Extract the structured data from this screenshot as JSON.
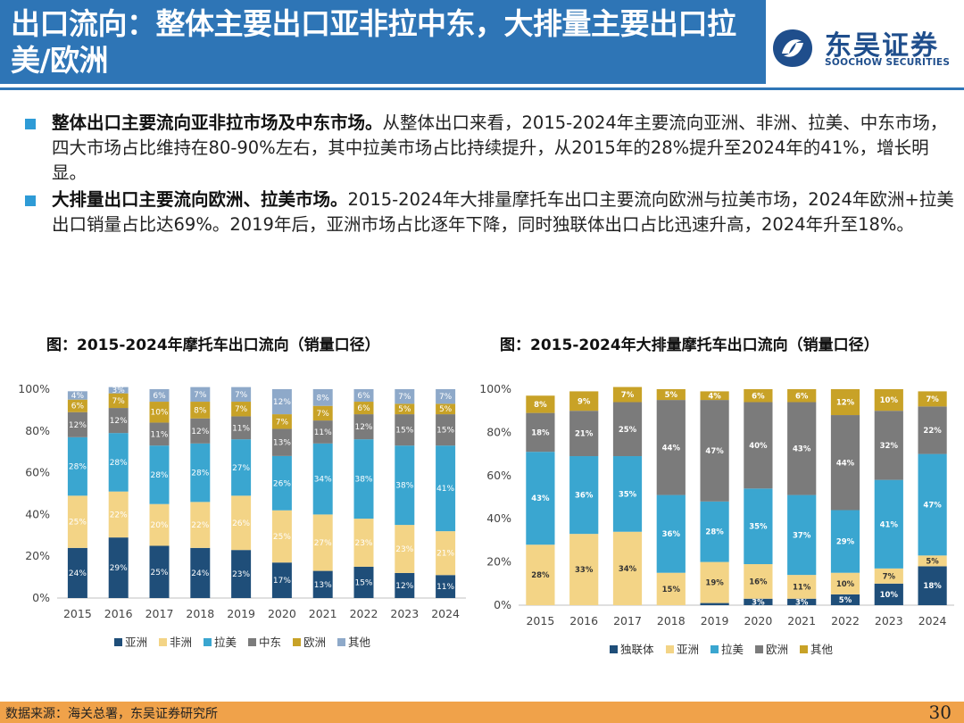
{
  "header": {
    "title": "出口流向：整体主要出口亚非拉中东，大排量主要出口拉美/欧洲",
    "logo_cn": "东吴证券",
    "logo_en": "SOOCHOW SECURITIES"
  },
  "bullets": [
    {
      "bold": "整体出口主要流向亚非拉市场及中东市场。",
      "text": "从整体出口来看，2015-2024年主要流向亚洲、非洲、拉美、中东市场，四大市场占比维持在80-90%左右，其中拉美市场占比持续提升，从2015年的28%提升至2024年的41%，增长明显。"
    },
    {
      "bold": "大排量出口主要流向欧洲、拉美市场。",
      "text": "2015-2024年大排量摩托车出口主要流向欧洲与拉美市场，2024年欧洲+拉美出口销量占比达69%。2019年后，亚洲市场占比逐年下降，同时独联体出口占比迅速升高，2024年升至18%。"
    }
  ],
  "footer": {
    "source": "数据来源：海关总署，东吴证券研究所",
    "page": "30"
  },
  "chart_data": [
    {
      "type": "bar",
      "stacked": true,
      "title": "图：2015-2024年摩托车出口流向（销量口径）",
      "categories": [
        "2015",
        "2016",
        "2017",
        "2018",
        "2019",
        "2020",
        "2021",
        "2022",
        "2023",
        "2024"
      ],
      "ylim": [
        0,
        100
      ],
      "yticks": [
        "0%",
        "20%",
        "40%",
        "60%",
        "80%",
        "100%"
      ],
      "legend_position": "bottom",
      "grid": false,
      "series": [
        {
          "name": "亚洲",
          "color": "#1f4e79",
          "values": [
            24,
            29,
            25,
            24,
            23,
            17,
            13,
            15,
            12,
            11
          ],
          "labels": [
            "24%",
            "29%",
            "25%",
            "24%",
            "23%",
            "17%",
            "13%",
            "15%",
            "12%",
            "11%"
          ]
        },
        {
          "name": "非洲",
          "color": "#f3d486",
          "values": [
            25,
            22,
            20,
            22,
            26,
            25,
            27,
            23,
            23,
            21
          ],
          "labels": [
            "25%",
            "22%",
            "20%",
            "22%",
            "26%",
            "25%",
            "27%",
            "23%",
            "23%",
            "21%"
          ]
        },
        {
          "name": "拉美",
          "color": "#3aa6d0",
          "values": [
            28,
            28,
            28,
            28,
            27,
            26,
            34,
            38,
            38,
            41
          ],
          "labels": [
            "28%",
            "28%",
            "28%",
            "28%",
            "27%",
            "26%",
            "34%",
            "38%",
            "38%",
            "41%"
          ]
        },
        {
          "name": "中东",
          "color": "#7b7b7b",
          "values": [
            12,
            12,
            11,
            12,
            11,
            13,
            11,
            12,
            15,
            15
          ],
          "labels": [
            "12%",
            "12%",
            "11%",
            "12%",
            "11%",
            "13%",
            "11%",
            "12%",
            "15%",
            "15%"
          ]
        },
        {
          "name": "欧洲",
          "color": "#c8a227",
          "values": [
            6,
            7,
            10,
            8,
            7,
            7,
            7,
            6,
            5,
            5
          ],
          "labels": [
            "6%",
            "7%",
            "10%",
            "8%",
            "7%",
            "7%",
            "7%",
            "6%",
            "5%",
            "5%"
          ]
        },
        {
          "name": "其他",
          "color": "#8ea9c9",
          "values": [
            4,
            3,
            6,
            7,
            7,
            12,
            8,
            6,
            7,
            7
          ],
          "labels": [
            "4%",
            "3%",
            "6%",
            "7%",
            "7%",
            "12%",
            "8%",
            "6%",
            "7%",
            "7%"
          ]
        }
      ]
    },
    {
      "type": "bar",
      "stacked": true,
      "title": "图：2015-2024年大排量摩托车出口流向（销量口径）",
      "categories": [
        "2015",
        "2016",
        "2017",
        "2018",
        "2019",
        "2020",
        "2021",
        "2022",
        "2023",
        "2024"
      ],
      "ylim": [
        0,
        100
      ],
      "yticks": [
        "0%",
        "20%",
        "40%",
        "60%",
        "80%",
        "100%"
      ],
      "legend_position": "bottom",
      "grid": false,
      "series": [
        {
          "name": "独联体",
          "color": "#1f4e79",
          "values": [
            0,
            0,
            0,
            0,
            1,
            3,
            3,
            5,
            10,
            18
          ],
          "labels": [
            "",
            "",
            "",
            "",
            "",
            "3%",
            "3%",
            "5%",
            "10%",
            "18%"
          ]
        },
        {
          "name": "亚洲",
          "color": "#f3d486",
          "values": [
            28,
            33,
            34,
            15,
            19,
            16,
            11,
            10,
            7,
            5
          ],
          "labels": [
            "28%",
            "33%",
            "34%",
            "15%",
            "19%",
            "16%",
            "11%",
            "10%",
            "7%",
            "5%"
          ]
        },
        {
          "name": "拉美",
          "color": "#3aa6d0",
          "values": [
            43,
            36,
            35,
            36,
            28,
            35,
            37,
            29,
            41,
            47
          ],
          "labels": [
            "43%",
            "36%",
            "35%",
            "36%",
            "28%",
            "35%",
            "37%",
            "29%",
            "41%",
            "47%"
          ]
        },
        {
          "name": "欧洲",
          "color": "#7b7b7b",
          "values": [
            18,
            21,
            25,
            44,
            47,
            40,
            43,
            44,
            32,
            22
          ],
          "labels": [
            "18%",
            "21%",
            "25%",
            "44%",
            "47%",
            "40%",
            "43%",
            "44%",
            "32%",
            "22%"
          ]
        },
        {
          "name": "其他",
          "color": "#c8a227",
          "values": [
            8,
            9,
            7,
            5,
            4,
            6,
            6,
            12,
            10,
            7
          ],
          "labels": [
            "8%",
            "9%",
            "7%",
            "5%",
            "4%",
            "6%",
            "6%",
            "12%",
            "10%",
            "7%"
          ]
        }
      ]
    }
  ]
}
